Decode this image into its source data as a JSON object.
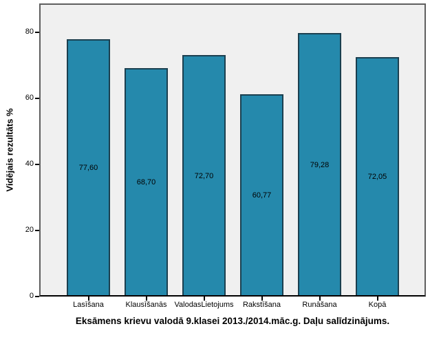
{
  "chart_data": {
    "type": "bar",
    "title": "Eksāmens krievu valodā 9.klasei 2013./2014.māc.g. Daļu salīdzinājums.",
    "ylabel": "Vidējais rezultāts %",
    "xlabel": "",
    "categories": [
      "Lasīšana",
      "Klausīšanās",
      "ValodasLietojums",
      "Rakstīšana",
      "Runāšana",
      "Kopā"
    ],
    "values": [
      77.6,
      68.7,
      72.7,
      60.77,
      79.28,
      72.05
    ],
    "value_labels": [
      "77,60",
      "68,70",
      "72,70",
      "60,77",
      "79,28",
      "72,05"
    ],
    "yticks": [
      0,
      20,
      40,
      60,
      80
    ],
    "ylim": [
      0,
      88.75
    ],
    "grid": false,
    "legend_position": "none",
    "colors": {
      "bar_fill": "#2589AC",
      "bar_border": "#1B3F4F",
      "plot_background": "#F0F0F0",
      "frame": "#5E5E5E",
      "axis": "#000000",
      "text": "#000000",
      "page_background": "#FFFFFF"
    }
  }
}
